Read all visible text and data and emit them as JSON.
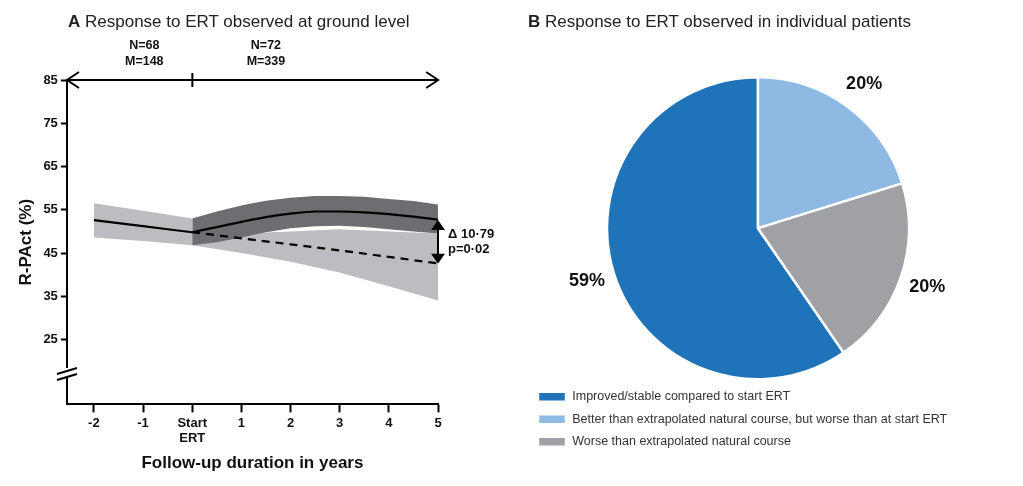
{
  "chart_data": [
    {
      "type": "line",
      "title": "A Response to ERT observed at ground level",
      "xlabel": "Follow-up duration in years",
      "ylabel": "R-PAct (%)",
      "xlim": [
        -2.55,
        5
      ],
      "xticks": [
        -2,
        -1,
        {
          "value": 0,
          "label": "Start ERT"
        },
        1,
        2,
        3,
        4,
        5
      ],
      "ylim": [
        10,
        85
      ],
      "yticks": [
        25,
        35,
        45,
        55,
        65,
        75,
        85
      ],
      "grid": false,
      "legend": false,
      "marker": "none",
      "series": [
        {
          "color": "#000000",
          "line_style": "dashed",
          "x": [
            0,
            1,
            2,
            3,
            4,
            5
          ],
          "values": [
            49.8,
            48.4,
            47.0,
            45.6,
            44.1,
            42.6
          ],
          "lower": [
            46.8,
            45.0,
            43.0,
            40.5,
            37.3,
            34.0
          ],
          "upper": [
            49.8,
            49.5,
            50.0,
            50.5,
            50.0,
            49.5
          ]
        },
        {
          "color": "#000000",
          "line_style": "solid",
          "x": [
            -2,
            -1,
            0
          ],
          "values": [
            52.6,
            51.2,
            49.8
          ],
          "lower": [
            48.6,
            47.8,
            46.8
          ],
          "upper": [
            56.5,
            54.8,
            53.0
          ]
        },
        {
          "color": "#000000",
          "line_style": "solid",
          "x": [
            0,
            0.5,
            1,
            1.5,
            2,
            2.5,
            3,
            3.5,
            4,
            4.5,
            5
          ],
          "values": [
            49.8,
            51.0,
            52.2,
            53.3,
            54.1,
            54.6,
            54.6,
            54.4,
            54.0,
            53.4,
            52.7
          ],
          "lower": [
            46.8,
            47.5,
            48.6,
            49.8,
            50.7,
            51.2,
            51.3,
            51.0,
            50.5,
            50.0,
            49.5
          ],
          "upper": [
            53.0,
            54.6,
            56.0,
            57.1,
            57.8,
            58.2,
            58.2,
            58.0,
            57.5,
            57.0,
            56.2
          ]
        }
      ],
      "annotations": [
        "N=68",
        "M=148",
        "N=72",
        "M=339",
        {
          "text": "Δ 10·79",
          "x": 5,
          "y": 49.2
        },
        {
          "text": "p=0·02",
          "x": 5,
          "y": 45.8
        }
      ]
    },
    {
      "type": "pie",
      "title": "B Response to ERT observed in individual patients",
      "legend": "bottom",
      "categories": [
        "Improved/stable compared to start ERT",
        "Better than extrapolated natural course, but worse than at start ERT",
        "Worse than extrapolated natural course"
      ],
      "values": [
        59,
        20,
        20
      ],
      "colors": [
        "#1f73b8",
        "#8db9e3",
        "#a0a1a5"
      ],
      "value_labels": [
        "59%",
        "20%",
        "20%"
      ]
    }
  ]
}
